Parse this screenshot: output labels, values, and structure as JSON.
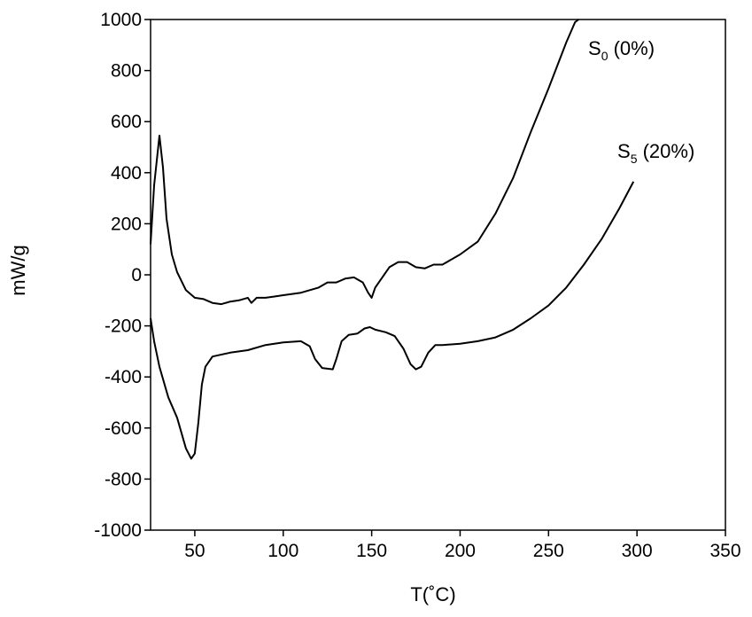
{
  "chart_data": {
    "type": "line",
    "title": "",
    "xlabel": "T(˚C)",
    "ylabel": "mW/g",
    "xlim": [
      25,
      350
    ],
    "ylim": [
      -1000,
      1000
    ],
    "x_ticks": [
      50,
      100,
      150,
      200,
      250,
      300,
      350
    ],
    "y_ticks": [
      -1000,
      -800,
      -600,
      -400,
      -200,
      0,
      200,
      400,
      600,
      800,
      1000
    ],
    "grid": false,
    "legend": "none",
    "series": [
      {
        "name": "S0 (0%)",
        "label_main": "S",
        "label_sub": "0",
        "label_rest": " (0%)",
        "color": "#000000",
        "x": [
          25,
          27,
          30,
          32,
          34,
          37,
          40,
          45,
          50,
          55,
          60,
          65,
          70,
          75,
          80,
          82,
          85,
          90,
          95,
          100,
          110,
          120,
          125,
          130,
          135,
          140,
          145,
          148,
          150,
          152,
          155,
          160,
          165,
          170,
          175,
          180,
          185,
          190,
          200,
          210,
          220,
          230,
          240,
          250,
          260,
          265,
          267
        ],
        "y": [
          120,
          350,
          545,
          420,
          220,
          80,
          10,
          -60,
          -90,
          -95,
          -110,
          -115,
          -105,
          -100,
          -90,
          -110,
          -90,
          -90,
          -85,
          -80,
          -70,
          -50,
          -30,
          -30,
          -15,
          -10,
          -30,
          -70,
          -90,
          -50,
          -20,
          30,
          50,
          50,
          30,
          25,
          40,
          40,
          80,
          130,
          240,
          380,
          560,
          730,
          910,
          990,
          1000
        ]
      },
      {
        "name": "S5 (20%)",
        "label_main": "S",
        "label_sub": "5",
        "label_rest": " (20%)",
        "color": "#000000",
        "x": [
          25,
          27,
          30,
          35,
          40,
          45,
          48,
          50,
          52,
          54,
          56,
          60,
          70,
          80,
          90,
          100,
          110,
          115,
          118,
          122,
          128,
          130,
          133,
          137,
          142,
          146,
          149,
          152,
          158,
          163,
          168,
          172,
          175,
          178,
          182,
          186,
          190,
          200,
          210,
          220,
          230,
          240,
          250,
          260,
          270,
          280,
          290,
          298
        ],
        "y": [
          -170,
          -260,
          -360,
          -480,
          -560,
          -680,
          -720,
          -700,
          -580,
          -430,
          -360,
          -320,
          -305,
          -295,
          -275,
          -265,
          -260,
          -280,
          -330,
          -365,
          -370,
          -330,
          -260,
          -235,
          -230,
          -210,
          -205,
          -215,
          -225,
          -240,
          -290,
          -350,
          -370,
          -360,
          -305,
          -275,
          -275,
          -270,
          -260,
          -245,
          -215,
          -170,
          -120,
          -50,
          40,
          140,
          260,
          365
        ]
      }
    ]
  }
}
